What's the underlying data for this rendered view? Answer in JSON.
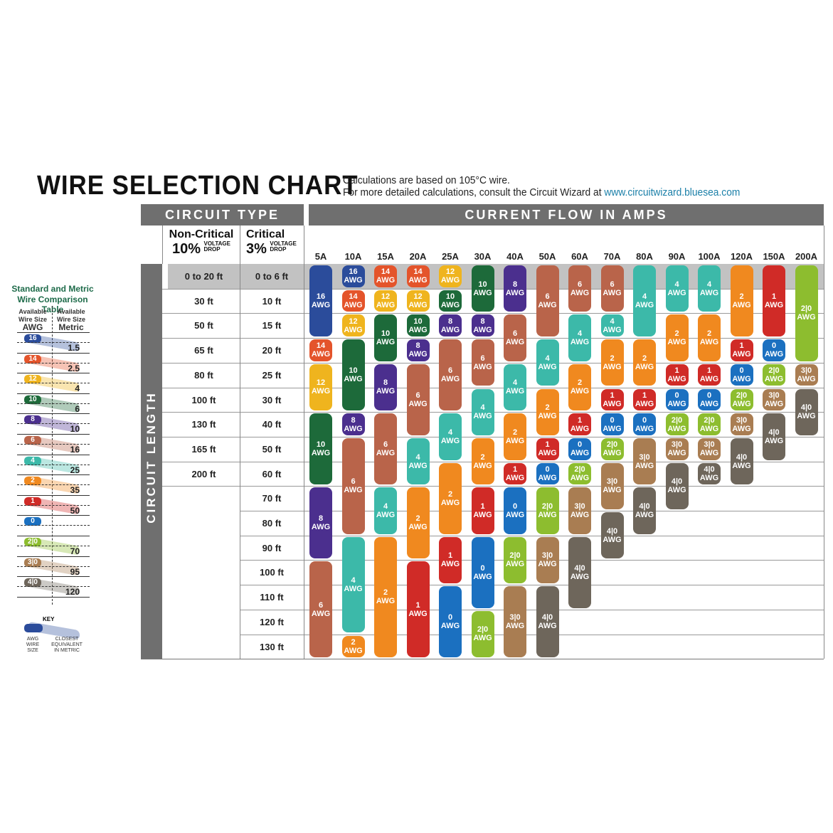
{
  "header": {
    "title": "WIRE SELECTION CHART",
    "note_line1": "Calculations are based on 105°C wire.",
    "note_line2": "For more detailed calculations, consult the Circuit Wizard at ",
    "note_link": "www.circuitwizard.bluesea.com"
  },
  "circuit_type": {
    "heading": "CIRCUIT TYPE",
    "non_critical": {
      "label": "Non-Critical",
      "pct": "10%",
      "drop1": "VOLTAGE",
      "drop2": "DROP"
    },
    "critical": {
      "label": "Critical",
      "pct": "3%",
      "drop1": "VOLTAGE",
      "drop2": "DROP"
    },
    "circuit_length_label": "CIRCUIT LENGTH"
  },
  "current_heading": "CURRENT FLOW IN AMPS",
  "colors": {
    "16": "#2b4c9b",
    "14": "#e4542b",
    "12": "#efb41e",
    "10": "#1d6a3a",
    "8": "#4b2f8e",
    "6": "#b9644a",
    "4": "#3cb9a9",
    "2": "#f0891f",
    "1": "#d02b27",
    "0": "#1b70c0",
    "2|0": "#8dbd2f",
    "3|0": "#a97d52",
    "4|0": "#6e665b",
    "highlight_row": "#c2c2c2",
    "header_gray": "#6f6f6f"
  },
  "chart_data": {
    "type": "table",
    "title": "WIRE SELECTION CHART",
    "unit_label": "AWG",
    "rows_non_critical": [
      "0 to 20 ft",
      "30 ft",
      "50 ft",
      "65 ft",
      "80 ft",
      "100 ft",
      "130 ft",
      "165 ft",
      "200 ft",
      "",
      "",
      "",
      "",
      "",
      "",
      ""
    ],
    "rows_critical": [
      "0 to 6 ft",
      "10 ft",
      "15 ft",
      "20 ft",
      "25 ft",
      "30 ft",
      "40 ft",
      "50 ft",
      "60 ft",
      "70 ft",
      "80 ft",
      "90 ft",
      "100 ft",
      "110 ft",
      "120 ft",
      "130 ft"
    ],
    "columns": [
      {
        "amps": "5A",
        "segments": [
          [
            "16",
            0,
            2
          ],
          [
            "14",
            3,
            3
          ],
          [
            "12",
            4,
            5
          ],
          [
            "10",
            6,
            8
          ],
          [
            "8",
            9,
            11
          ],
          [
            "6",
            12,
            15
          ]
        ]
      },
      {
        "amps": "10A",
        "segments": [
          [
            "16",
            0,
            0
          ],
          [
            "14",
            1,
            1
          ],
          [
            "12",
            2,
            2
          ],
          [
            "10",
            3,
            5
          ],
          [
            "8",
            6,
            6
          ],
          [
            "6",
            7,
            10
          ],
          [
            "4",
            11,
            14
          ],
          [
            "2",
            15,
            15
          ]
        ]
      },
      {
        "amps": "15A",
        "segments": [
          [
            "14",
            0,
            0
          ],
          [
            "12",
            1,
            1
          ],
          [
            "10",
            2,
            3
          ],
          [
            "8",
            4,
            5
          ],
          [
            "6",
            6,
            8
          ],
          [
            "4",
            9,
            10
          ],
          [
            "2",
            11,
            15
          ]
        ]
      },
      {
        "amps": "20A",
        "segments": [
          [
            "14",
            0,
            0
          ],
          [
            "12",
            1,
            1
          ],
          [
            "10",
            2,
            2
          ],
          [
            "8",
            3,
            3
          ],
          [
            "6",
            4,
            6
          ],
          [
            "4",
            7,
            8
          ],
          [
            "2",
            9,
            11
          ],
          [
            "1",
            12,
            15
          ]
        ]
      },
      {
        "amps": "25A",
        "segments": [
          [
            "12",
            0,
            0
          ],
          [
            "10",
            1,
            1
          ],
          [
            "8",
            2,
            2
          ],
          [
            "6",
            3,
            5
          ],
          [
            "4",
            6,
            7
          ],
          [
            "2",
            8,
            10
          ],
          [
            "1",
            11,
            12
          ],
          [
            "0",
            13,
            15
          ]
        ]
      },
      {
        "amps": "30A",
        "segments": [
          [
            "10",
            0,
            1
          ],
          [
            "8",
            2,
            2
          ],
          [
            "6",
            3,
            4
          ],
          [
            "4",
            5,
            6
          ],
          [
            "2",
            7,
            8
          ],
          [
            "1",
            9,
            10
          ],
          [
            "0",
            11,
            13
          ],
          [
            "2|0",
            14,
            15
          ]
        ]
      },
      {
        "amps": "40A",
        "segments": [
          [
            "8",
            0,
            1
          ],
          [
            "6",
            2,
            3
          ],
          [
            "4",
            4,
            5
          ],
          [
            "2",
            6,
            7
          ],
          [
            "1",
            8,
            8
          ],
          [
            "0",
            9,
            10
          ],
          [
            "2|0",
            11,
            12
          ],
          [
            "3|0",
            13,
            15
          ]
        ]
      },
      {
        "amps": "50A",
        "segments": [
          [
            "6",
            0,
            2
          ],
          [
            "4",
            3,
            4
          ],
          [
            "2",
            5,
            6
          ],
          [
            "1",
            7,
            7
          ],
          [
            "0",
            8,
            8
          ],
          [
            "2|0",
            9,
            10
          ],
          [
            "3|0",
            11,
            12
          ],
          [
            "4|0",
            13,
            15
          ]
        ]
      },
      {
        "amps": "60A",
        "segments": [
          [
            "6",
            0,
            1
          ],
          [
            "4",
            2,
            3
          ],
          [
            "2",
            4,
            5
          ],
          [
            "1",
            6,
            6
          ],
          [
            "0",
            7,
            7
          ],
          [
            "2|0",
            8,
            8
          ],
          [
            "3|0",
            9,
            10
          ],
          [
            "4|0",
            11,
            13
          ]
        ]
      },
      {
        "amps": "70A",
        "segments": [
          [
            "6",
            0,
            1
          ],
          [
            "4",
            2,
            2
          ],
          [
            "2",
            3,
            4
          ],
          [
            "1",
            5,
            5
          ],
          [
            "0",
            6,
            6
          ],
          [
            "2|0",
            7,
            7
          ],
          [
            "3|0",
            8,
            9
          ],
          [
            "4|0",
            10,
            11
          ]
        ]
      },
      {
        "amps": "80A",
        "segments": [
          [
            "4",
            0,
            2
          ],
          [
            "2",
            3,
            4
          ],
          [
            "1",
            5,
            5
          ],
          [
            "0",
            6,
            6
          ],
          [
            "3|0",
            7,
            8
          ],
          [
            "4|0",
            9,
            10
          ]
        ]
      },
      {
        "amps": "90A",
        "segments": [
          [
            "4",
            0,
            1
          ],
          [
            "2",
            2,
            3
          ],
          [
            "1",
            4,
            4
          ],
          [
            "0",
            5,
            5
          ],
          [
            "2|0",
            6,
            6
          ],
          [
            "3|0",
            7,
            7
          ],
          [
            "4|0",
            8,
            9
          ]
        ]
      },
      {
        "amps": "100A",
        "segments": [
          [
            "4",
            0,
            1
          ],
          [
            "2",
            2,
            3
          ],
          [
            "1",
            4,
            4
          ],
          [
            "0",
            5,
            5
          ],
          [
            "2|0",
            6,
            6
          ],
          [
            "3|0",
            7,
            7
          ],
          [
            "4|0",
            8,
            8
          ]
        ]
      },
      {
        "amps": "120A",
        "segments": [
          [
            "2",
            0,
            2
          ],
          [
            "1",
            3,
            3
          ],
          [
            "0",
            4,
            4
          ],
          [
            "2|0",
            5,
            5
          ],
          [
            "3|0",
            6,
            6
          ],
          [
            "4|0",
            7,
            8
          ]
        ]
      },
      {
        "amps": "150A",
        "segments": [
          [
            "1",
            0,
            2
          ],
          [
            "0",
            3,
            3
          ],
          [
            "2|0",
            4,
            4
          ],
          [
            "3|0",
            5,
            5
          ],
          [
            "4|0",
            6,
            7
          ]
        ]
      },
      {
        "amps": "200A",
        "segments": [
          [
            "2|0",
            0,
            3
          ],
          [
            "3|0",
            4,
            4
          ],
          [
            "4|0",
            5,
            6
          ]
        ]
      }
    ]
  },
  "comparison": {
    "title1": "Standard and Metric",
    "title2": "Wire Comparison Table",
    "col_awg": [
      "Available",
      "Wire Size",
      "AWG"
    ],
    "col_metric": [
      "Available",
      "Wire Size",
      "Metric"
    ],
    "rows": [
      [
        "16",
        "1.5"
      ],
      [
        "14",
        "2.5"
      ],
      [
        "12",
        "4"
      ],
      [
        "10",
        "6"
      ],
      [
        "8",
        "10"
      ],
      [
        "6",
        "16"
      ],
      [
        "4",
        "25"
      ],
      [
        "2",
        "35"
      ],
      [
        "1",
        "50"
      ],
      [
        "0",
        ""
      ],
      [
        "2|0",
        "70"
      ],
      [
        "3|0",
        "95"
      ],
      [
        "4|0",
        "120"
      ]
    ],
    "key": {
      "title": "KEY",
      "left": [
        "AWG",
        "WIRE",
        "SIZE"
      ],
      "right": [
        "CLOSEST",
        "EQUIVALENT",
        "IN METRIC"
      ]
    }
  }
}
